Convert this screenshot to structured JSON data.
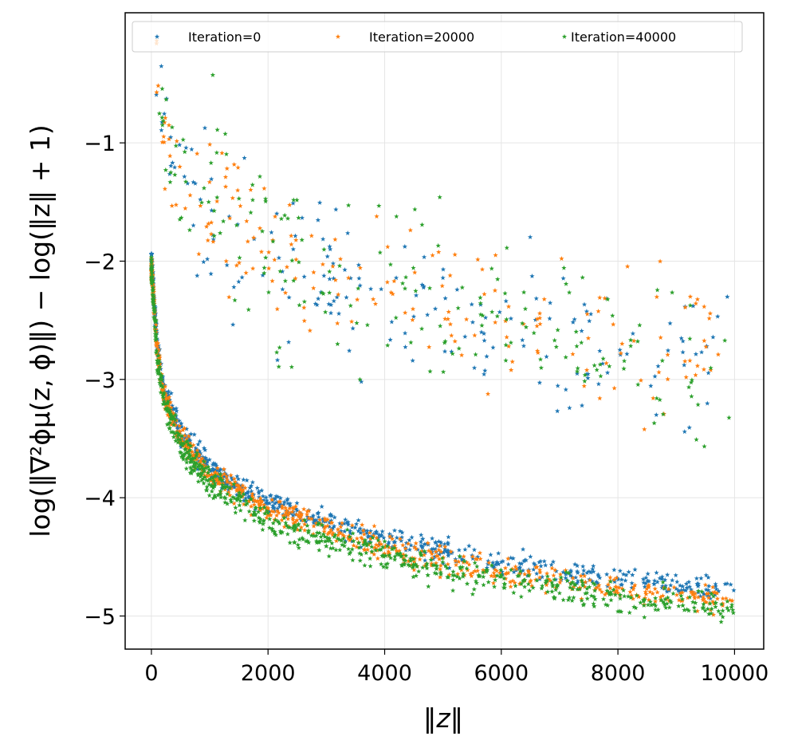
{
  "chart_data": {
    "type": "scatter",
    "title": "",
    "xlabel": "‖z‖",
    "ylabel": "log(‖∇²ϕμ(z, ϕ)‖) − log(‖z‖ + 1)",
    "xlim": [
      -450,
      10500
    ],
    "ylim": [
      -5.28,
      0.1
    ],
    "xticks": [
      0,
      2000,
      4000,
      6000,
      8000,
      10000
    ],
    "xtick_labels": [
      "0",
      "2000",
      "4000",
      "6000",
      "8000",
      "10000"
    ],
    "yticks": [
      -5,
      -4,
      -3,
      -2,
      -1
    ],
    "ytick_labels": [
      "−5",
      "−4",
      "−3",
      "−2",
      "−1"
    ],
    "grid": true,
    "marker": "star",
    "legend": {
      "placement": "top",
      "columns": 3
    },
    "series": [
      {
        "name": "Iteration=0",
        "color": "#1f77b4",
        "lower_branch": {
          "x_range": [
            0,
            10000
          ],
          "y_at_x": [
            [
              0,
              -2.0
            ],
            [
              100,
              -2.7
            ],
            [
              200,
              -3.05
            ],
            [
              500,
              -3.45
            ],
            [
              1000,
              -3.75
            ],
            [
              2000,
              -4.05
            ],
            [
              4000,
              -4.35
            ],
            [
              6000,
              -4.55
            ],
            [
              8000,
              -4.7
            ],
            [
              10000,
              -4.78
            ]
          ],
          "spread": 0.05
        },
        "upper_branch": {
          "x_range": [
            80,
            10000
          ],
          "y_at_x": [
            [
              80,
              -0.35
            ],
            [
              200,
              -0.9
            ],
            [
              500,
              -1.35
            ],
            [
              1000,
              -1.65
            ],
            [
              2000,
              -2.05
            ],
            [
              4000,
              -2.35
            ],
            [
              6000,
              -2.55
            ],
            [
              8000,
              -2.72
            ],
            [
              10000,
              -2.85
            ]
          ],
          "spread": 0.3
        }
      },
      {
        "name": "Iteration=20000",
        "color": "#ff7f0e",
        "lower_branch": {
          "x_range": [
            0,
            10000
          ],
          "y_at_x": [
            [
              0,
              -2.05
            ],
            [
              100,
              -2.75
            ],
            [
              200,
              -3.1
            ],
            [
              500,
              -3.5
            ],
            [
              1000,
              -3.8
            ],
            [
              2000,
              -4.1
            ],
            [
              4000,
              -4.42
            ],
            [
              6000,
              -4.63
            ],
            [
              8000,
              -4.78
            ],
            [
              10000,
              -4.88
            ]
          ],
          "spread": 0.05
        },
        "upper_branch": {
          "x_range": [
            80,
            10000
          ],
          "y_at_x": [
            [
              80,
              -0.3
            ],
            [
              200,
              -0.85
            ],
            [
              500,
              -1.4
            ],
            [
              1000,
              -1.55
            ],
            [
              2000,
              -1.95
            ],
            [
              4000,
              -2.2
            ],
            [
              6000,
              -2.45
            ],
            [
              8000,
              -2.65
            ],
            [
              10000,
              -2.8
            ]
          ],
          "spread": 0.3
        }
      },
      {
        "name": "Iteration=40000",
        "color": "#2ca02c",
        "lower_branch": {
          "x_range": [
            0,
            10000
          ],
          "y_at_x": [
            [
              0,
              -2.05
            ],
            [
              100,
              -2.8
            ],
            [
              200,
              -3.15
            ],
            [
              500,
              -3.55
            ],
            [
              1000,
              -3.88
            ],
            [
              2000,
              -4.2
            ],
            [
              4000,
              -4.5
            ],
            [
              6000,
              -4.7
            ],
            [
              8000,
              -4.85
            ],
            [
              10000,
              -4.95
            ]
          ],
          "spread": 0.06
        },
        "upper_branch": {
          "x_range": [
            80,
            10000
          ],
          "y_at_x": [
            [
              80,
              -0.3
            ],
            [
              200,
              -0.8
            ],
            [
              500,
              -1.2
            ],
            [
              1000,
              -1.45
            ],
            [
              2000,
              -1.95
            ],
            [
              4000,
              -2.2
            ],
            [
              6000,
              -2.5
            ],
            [
              8000,
              -2.7
            ],
            [
              10000,
              -2.9
            ]
          ],
          "spread": 0.38
        }
      }
    ]
  }
}
